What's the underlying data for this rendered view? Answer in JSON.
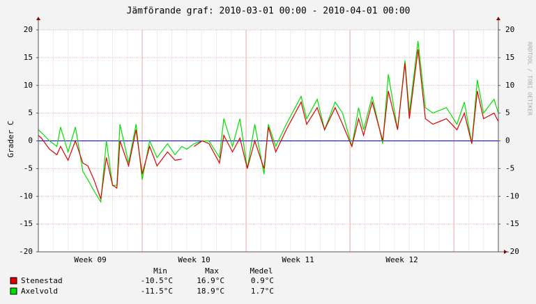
{
  "chart_data": {
    "type": "line",
    "title": "Jämförande graf: 2010-03-01 00:00 - 2010-04-01 00:00",
    "ylabel": "Grader C",
    "watermark": "RRDTOOL / TOBI OETIKER",
    "x": [
      0,
      5,
      18,
      30,
      36,
      48,
      60,
      72,
      80,
      90,
      101,
      110,
      120,
      127,
      132,
      146,
      158,
      168,
      180,
      192,
      209,
      221,
      232,
      240,
      252,
      265,
      276,
      293,
      300,
      314,
      326,
      338,
      350,
      365,
      372,
      384,
      401,
      425,
      434,
      451,
      463,
      480,
      492,
      507,
      518,
      526,
      540,
      557,
      566,
      581,
      593,
      600,
      614,
      626,
      638,
      660,
      677,
      689,
      701,
      710,
      720,
      737,
      744
    ],
    "xlim": [
      0,
      744
    ],
    "xticks": [
      {
        "value": 84,
        "label": "Week 09"
      },
      {
        "value": 252,
        "label": "Week 10"
      },
      {
        "value": 420,
        "label": "Week 11"
      },
      {
        "value": 588,
        "label": "Week 12"
      }
    ],
    "xgrid": [
      168,
      336,
      504,
      672
    ],
    "xminor": [
      24,
      48,
      72,
      96,
      120,
      144,
      192,
      216,
      240,
      264,
      288,
      312,
      360,
      384,
      408,
      432,
      456,
      480,
      528,
      552,
      576,
      600,
      624,
      648,
      696,
      720
    ],
    "ylim": [
      -20,
      20
    ],
    "yticks": [
      -20,
      -15,
      -10,
      -5,
      0,
      5,
      10,
      15,
      20
    ],
    "grid": true,
    "reference_line": {
      "value": 0,
      "color": "#0000ff"
    },
    "series": [
      {
        "name": "Stenestad",
        "color": "#e00000",
        "values": [
          1,
          0.5,
          -1.5,
          -2.5,
          -1,
          -3.5,
          0,
          -4,
          -4.5,
          -7,
          -10.5,
          -3,
          -8,
          -8.5,
          0,
          -4.5,
          2,
          -6,
          -1,
          -4.5,
          -2,
          -3.5,
          -3.3,
          null,
          -1,
          0,
          -0.5,
          -4,
          1,
          -2,
          0.5,
          -5,
          0,
          -5,
          2.5,
          -2,
          2,
          7,
          3,
          6,
          2,
          6,
          3,
          -1,
          4,
          1,
          7,
          0,
          9,
          2,
          14,
          4,
          16.5,
          4,
          3,
          4,
          2,
          5,
          -0.5,
          9,
          4,
          5,
          3.5
        ]
      },
      {
        "name": "Axelvold",
        "color": "#00e000",
        "values": [
          2,
          1.5,
          0,
          -1,
          2.5,
          -2,
          2.5,
          -5.5,
          -7,
          -9,
          -11,
          0,
          -8,
          -8,
          3,
          -4,
          3,
          -7,
          0,
          -3,
          -0.5,
          -2.5,
          -1,
          -1.5,
          -0.5,
          0,
          0,
          -3,
          4,
          -1,
          4,
          -5,
          3,
          -6,
          3,
          -1,
          3,
          8,
          4,
          7.5,
          2,
          7,
          5,
          -1,
          6,
          2,
          8,
          -0.5,
          12,
          2,
          14.5,
          5,
          18,
          6,
          5,
          6,
          3,
          7,
          -0.5,
          11,
          5,
          7.5,
          5
        ]
      }
    ],
    "stats": {
      "headers": [
        "Min",
        "Max",
        "Medel"
      ],
      "rows": [
        [
          "-10.5°C",
          "16.9°C",
          "0.9°C"
        ],
        [
          "-11.5°C",
          "18.9°C",
          "1.7°C"
        ]
      ]
    }
  }
}
